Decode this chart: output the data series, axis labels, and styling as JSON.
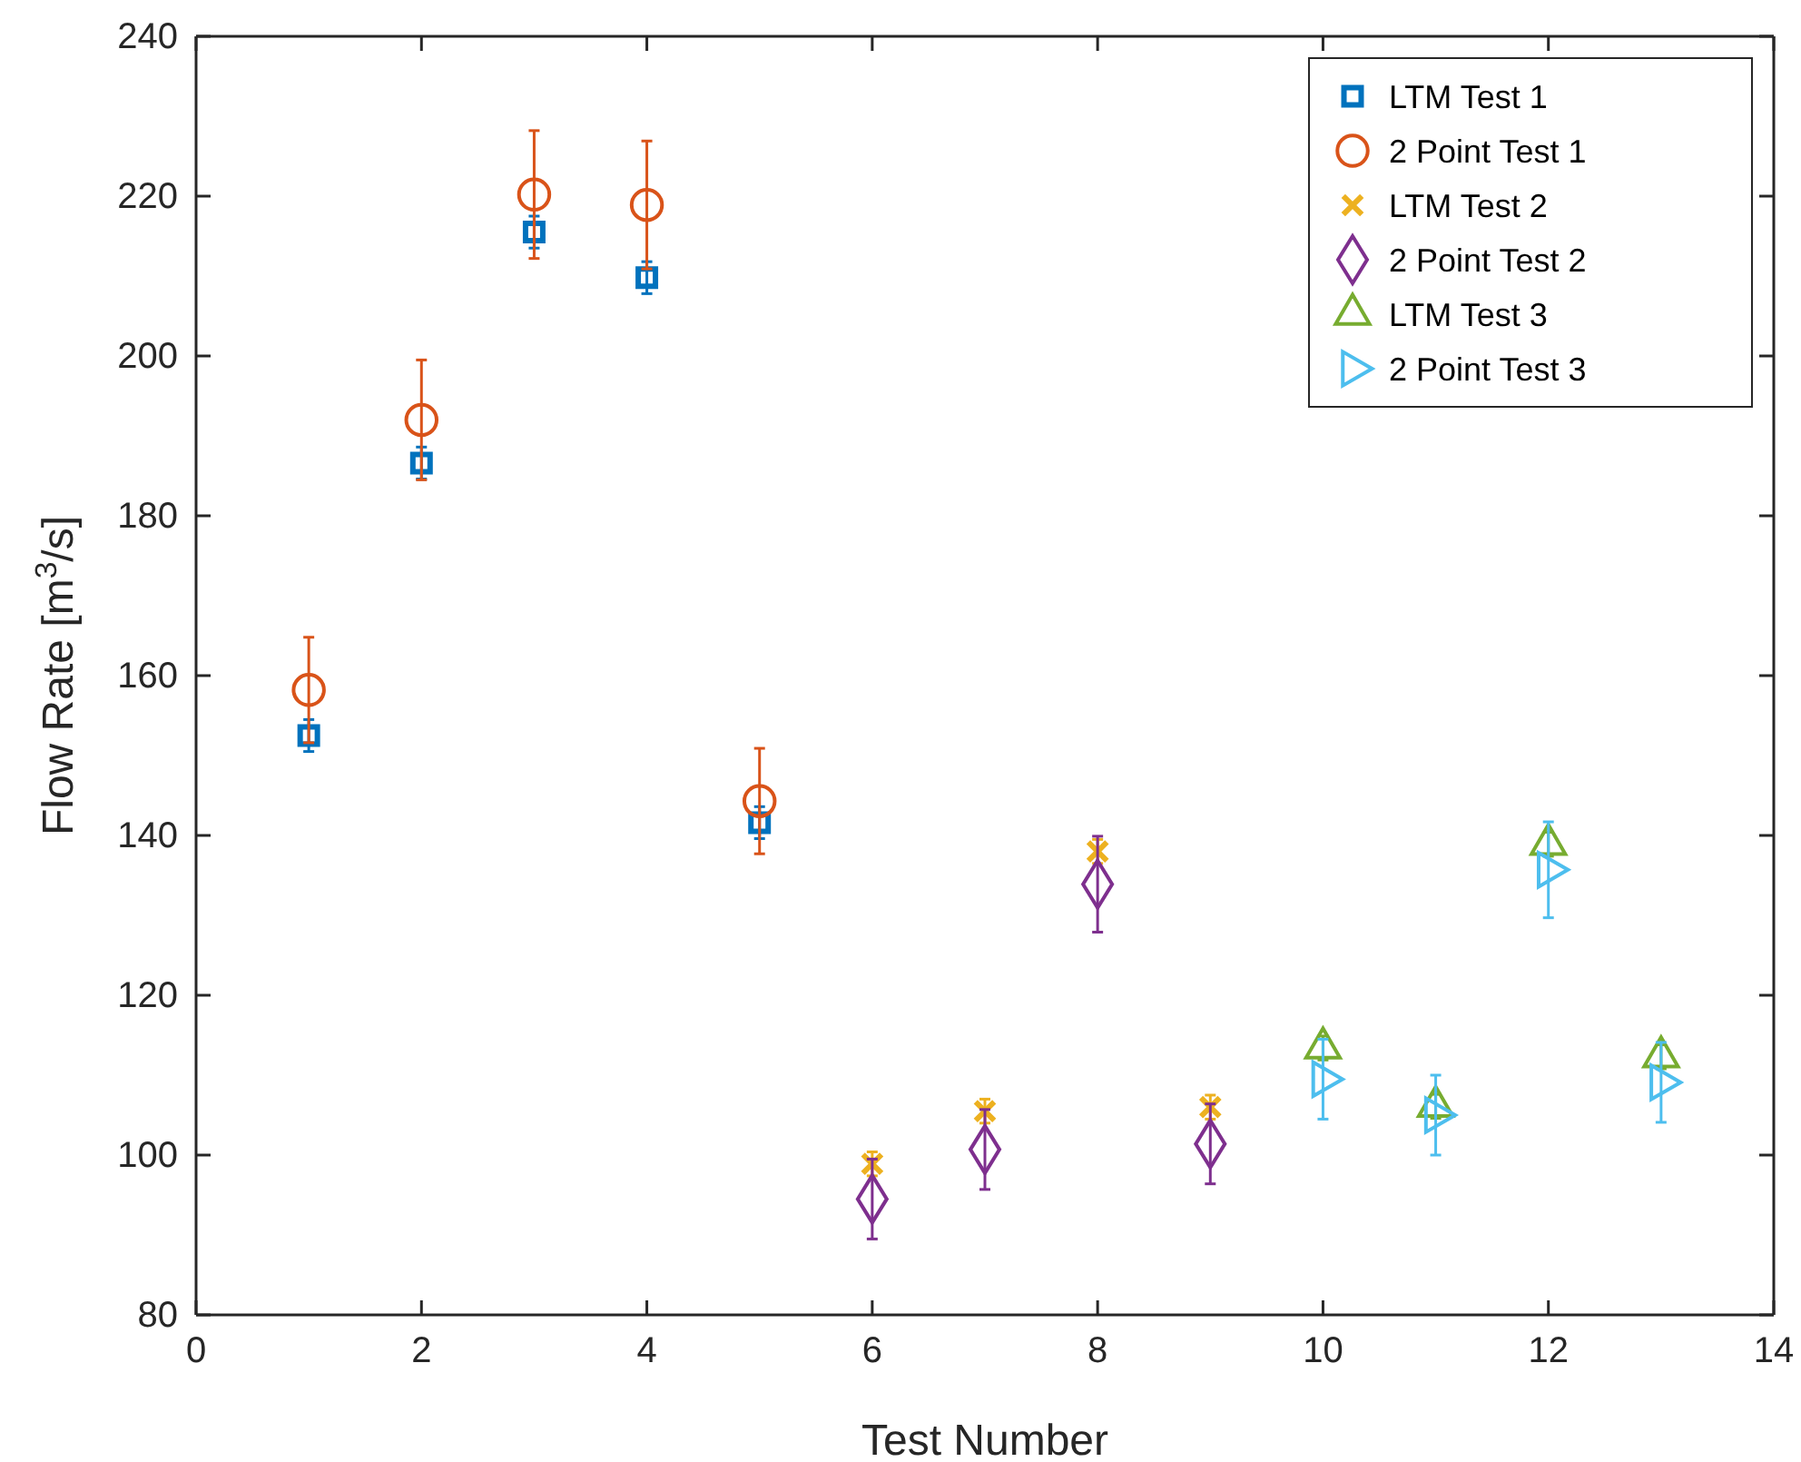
{
  "chart_data": {
    "type": "scatter",
    "xlabel": "Test Number",
    "ylabel": "Flow Rate [m$^{3}$/s]",
    "xlim": [
      0,
      14
    ],
    "xticks": [
      0,
      2,
      4,
      6,
      8,
      10,
      12,
      14
    ],
    "ylim": [
      80,
      240
    ],
    "yticks": [
      80,
      100,
      120,
      140,
      160,
      180,
      200,
      220,
      240
    ],
    "grid": false,
    "legend": "top right",
    "series": [
      {
        "name": "LTM Test 1",
        "color": "#0072bd",
        "marker": "square",
        "x": [
          1,
          2,
          3,
          4,
          5
        ],
        "values": [
          152.5,
          186.6,
          215.5,
          209.8,
          141.6
        ],
        "errors": [
          2,
          2,
          2,
          2,
          2
        ]
      },
      {
        "name": "2 Point Test 1",
        "color": "#d95319",
        "marker": "circle",
        "x": [
          1,
          2,
          3,
          4,
          5
        ],
        "values": [
          158.2,
          192,
          220.2,
          218.9,
          144.3
        ],
        "errors": [
          6.6,
          7.5,
          8,
          8,
          6.6
        ]
      },
      {
        "name": "LTM Test 2",
        "color": "#edb120",
        "marker": "cross",
        "x": [
          6,
          7,
          8,
          9
        ],
        "values": [
          98.9,
          105.5,
          138,
          106
        ],
        "errors": [
          1.5,
          1.5,
          1.5,
          1.5
        ]
      },
      {
        "name": "2 Point Test 2",
        "color": "#7e2f8e",
        "marker": "diamond",
        "x": [
          6,
          7,
          8,
          9
        ],
        "values": [
          94.5,
          100.7,
          133.9,
          101.4
        ],
        "errors": [
          5,
          5,
          6,
          5
        ]
      },
      {
        "name": "LTM Test 3",
        "color": "#77ac30",
        "marker": "triangle",
        "x": [
          10,
          11,
          12,
          13
        ],
        "values": [
          113.4,
          106.1,
          138.9,
          112.3
        ],
        "errors": [
          1.5,
          1.5,
          1.5,
          1.5
        ]
      },
      {
        "name": "2 Point Test 3",
        "color": "#4dbeee",
        "marker": "triangle-right",
        "x": [
          10,
          11,
          12,
          13
        ],
        "values": [
          109.5,
          105,
          135.7,
          109.1
        ],
        "errors": [
          5,
          5,
          6,
          5
        ]
      }
    ]
  }
}
